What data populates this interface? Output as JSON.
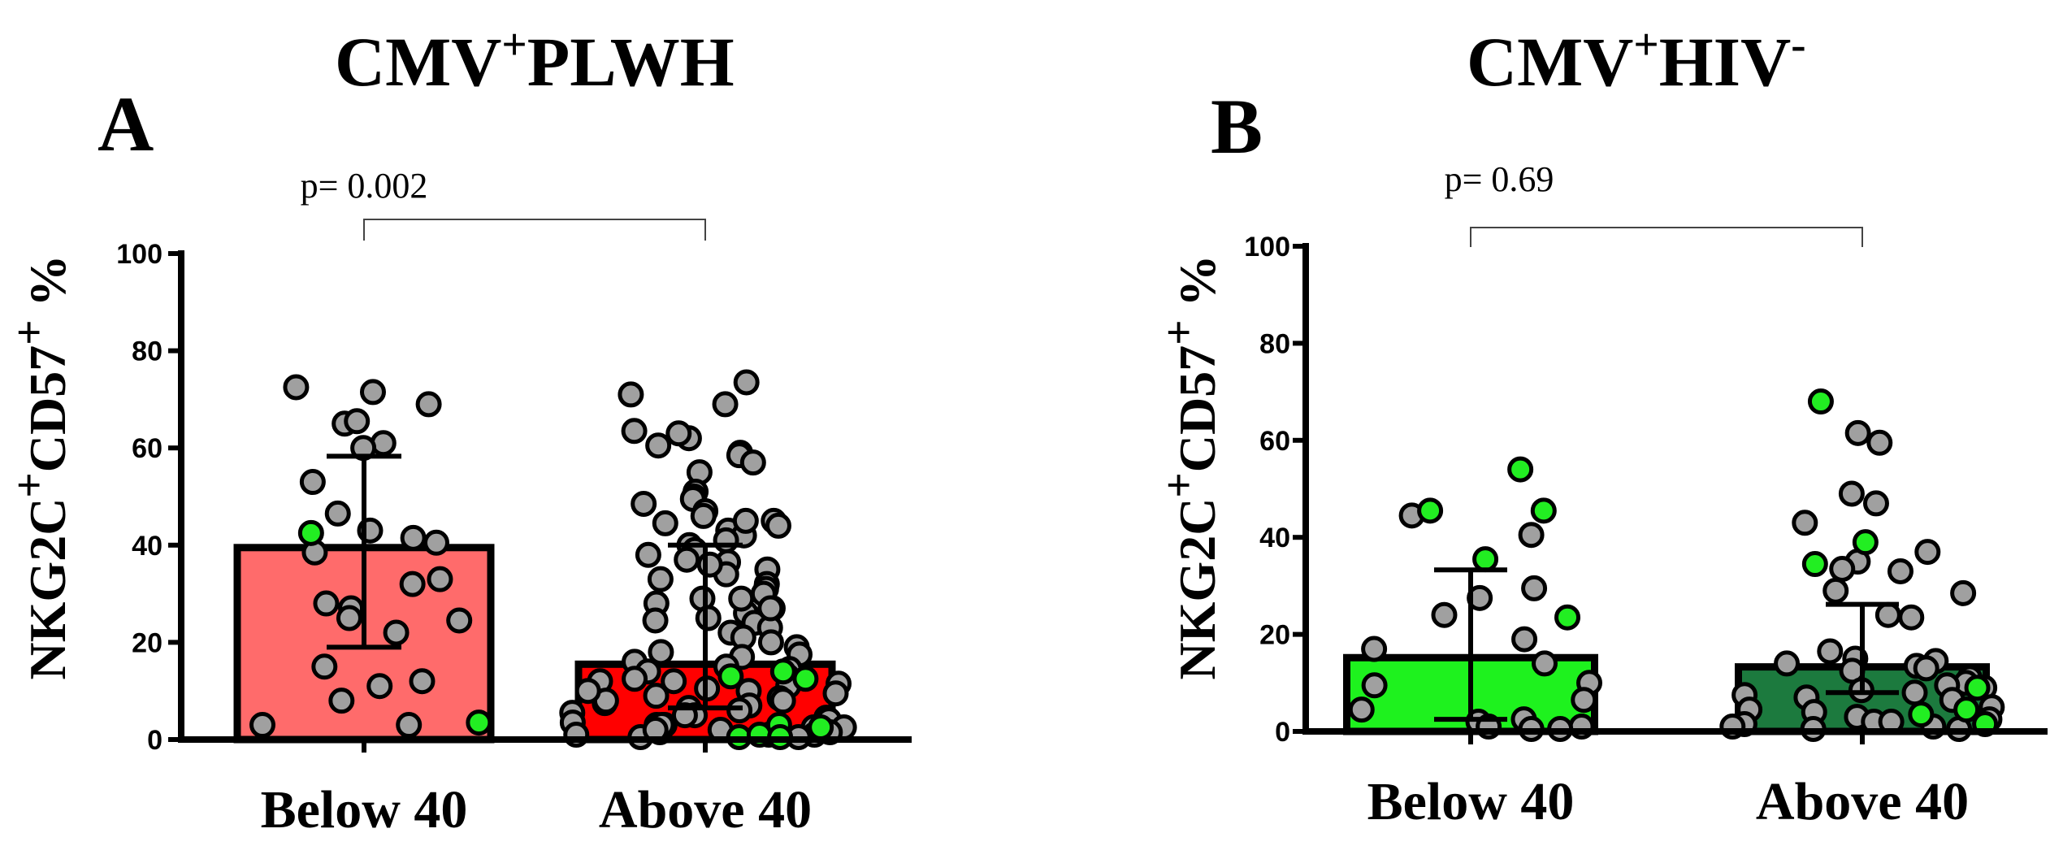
{
  "chart_data": [
    {
      "type": "bar",
      "panel": "A",
      "title_main": "CMV",
      "title_sup1": "+",
      "title_rest": "PLWH",
      "title_sup2": "",
      "ylabel_parts": [
        "NKG2C",
        "+",
        "CD57",
        "+",
        " %"
      ],
      "yticks": [
        0,
        20,
        40,
        60,
        80,
        100
      ],
      "ylim": [
        0,
        100
      ],
      "categories": [
        "Below 40",
        "Above 40"
      ],
      "values": [
        39.5,
        15.5
      ],
      "sd": [
        [
          19,
          58.3
        ],
        [
          6.5,
          40
        ]
      ],
      "bar_colors": [
        "#ff6b6b",
        "#ff0000"
      ],
      "pvalue": "p= 0.002",
      "points": [
        {
          "group": 0,
          "values": [
            69,
            72.5,
            71.5,
            65,
            65.5,
            61,
            53,
            46.5,
            43,
            40.5,
            41.5,
            38.5,
            33,
            32,
            27,
            24.5,
            25,
            22,
            15,
            12,
            11,
            3,
            8,
            3,
            28,
            60
          ]
        },
        {
          "group": 0,
          "color": "green",
          "values": [
            42.5,
            3.5
          ]
        },
        {
          "group": 1,
          "values": [
            73.5,
            71,
            69,
            63.5,
            62,
            60.5,
            59,
            58.5,
            57,
            55,
            51,
            50,
            49.5,
            48.5,
            47,
            46,
            45,
            44.5,
            44,
            43,
            42,
            41,
            40,
            39,
            38,
            37,
            36.5,
            35,
            34,
            33,
            32,
            31,
            30,
            29,
            28,
            27,
            26,
            25,
            24.5,
            24,
            23,
            22,
            21,
            20,
            19,
            18,
            17.5,
            17,
            16,
            15,
            14.5,
            14,
            13,
            12.5,
            12,
            11.5,
            11,
            10.5,
            10,
            9.5,
            9,
            8.5,
            8,
            7.5,
            7,
            6.5,
            6,
            5.5,
            5,
            4.5,
            4,
            3.5,
            3,
            3,
            2.5,
            2.5,
            2,
            2,
            1.5,
            1.5,
            1,
            1,
            0.5,
            0.5,
            3,
            2,
            5,
            8,
            10,
            12,
            27,
            29,
            36,
            45,
            63
          ]
        },
        {
          "group": 1,
          "color": "green",
          "values": [
            2.5,
            1,
            0.5,
            1,
            3,
            0.5,
            13,
            12.5,
            14
          ]
        }
      ]
    },
    {
      "type": "bar",
      "panel": "B",
      "title_main": "CMV",
      "title_sup1": "+",
      "title_rest": "HIV",
      "title_sup2": "-",
      "ylabel_parts": [
        "NKG2C",
        "+",
        "CD57",
        "+",
        " %"
      ],
      "yticks": [
        0,
        20,
        40,
        60,
        80,
        100
      ],
      "ylim": [
        0,
        100
      ],
      "categories": [
        "Below 40",
        "Above 40"
      ],
      "values": [
        15.2,
        13.3
      ],
      "sd": [
        [
          2.5,
          33.3
        ],
        [
          8,
          26.2
        ]
      ],
      "bar_colors": [
        "#1ef21e",
        "#1c7a3e"
      ],
      "pvalue": "p= 0.69",
      "points": [
        {
          "group": 0,
          "values": [
            44.5,
            40.5,
            27.5,
            29.5,
            24,
            19,
            17,
            14,
            10,
            9.5,
            6.5,
            4.5,
            2,
            1,
            1,
            2.5,
            0.5,
            0.5
          ]
        },
        {
          "group": 0,
          "color": "green",
          "values": [
            54,
            45.5,
            45.5,
            35.5,
            23.5
          ]
        },
        {
          "group": 1,
          "values": [
            61.5,
            59.5,
            49,
            47,
            43,
            37,
            35,
            33.5,
            33,
            29,
            28.5,
            24,
            23.5,
            16.5,
            15,
            14.5,
            14,
            13.5,
            13,
            12.5,
            11,
            10,
            9.5,
            9,
            8.5,
            8,
            7.5,
            7,
            6.5,
            5,
            4.5,
            4,
            3,
            2.5,
            2,
            1.5,
            1,
            0.5,
            0.5,
            1,
            2
          ]
        },
        {
          "group": 1,
          "color": "green",
          "values": [
            68,
            39,
            34.5,
            4.5,
            3.5,
            9,
            1.5
          ]
        }
      ]
    }
  ]
}
